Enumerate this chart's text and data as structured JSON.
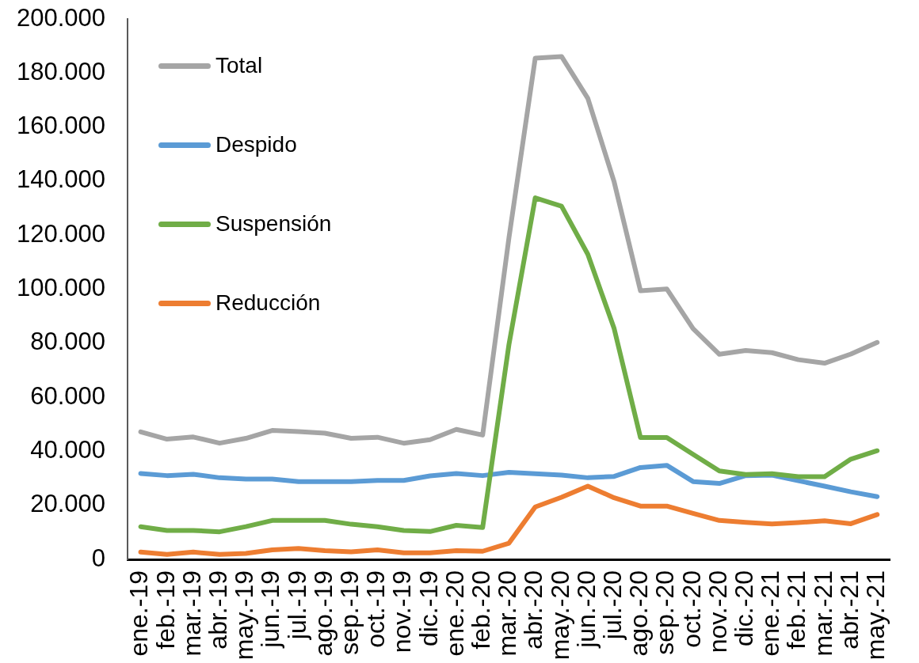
{
  "chart_data": {
    "type": "line",
    "categories": [
      "ene.-19",
      "feb.-19",
      "mar.-19",
      "abr.-19",
      "may.-19",
      "jun.-19",
      "jul.-19",
      "ago.-19",
      "sep.-19",
      "oct.-19",
      "nov.-19",
      "dic.-19",
      "ene.-20",
      "feb.-20",
      "mar.-20",
      "abr.-20",
      "may.-20",
      "jun.-20",
      "jul.-20",
      "ago.-20",
      "sep.-20",
      "oct.-20",
      "nov.-20",
      "dic.-20",
      "ene.-21",
      "feb.-21",
      "mar.-21",
      "abr.-21",
      "may.-21"
    ],
    "series": [
      {
        "name": "Total",
        "color": "#a5a5a5",
        "values": [
          47200,
          44500,
          45300,
          43000,
          44800,
          47700,
          47300,
          46700,
          44800,
          45200,
          43000,
          44300,
          48100,
          46000,
          119000,
          185500,
          186100,
          170600,
          139700,
          99400,
          100100,
          85400,
          75900,
          77300,
          76500,
          73900,
          72600,
          76000,
          80300
        ]
      },
      {
        "name": "Despido",
        "color": "#5b9bd5",
        "values": [
          31800,
          31000,
          31500,
          30200,
          29700,
          29700,
          28800,
          28800,
          28800,
          29200,
          29200,
          30900,
          31800,
          31000,
          32200,
          31700,
          31200,
          30200,
          30700,
          34000,
          34800,
          28800,
          28100,
          31000,
          31200,
          29100,
          27100,
          25000,
          23200
        ]
      },
      {
        "name": "Suspensión",
        "color": "#70ad47",
        "values": [
          12100,
          10700,
          10700,
          10200,
          12100,
          14400,
          14400,
          14400,
          13000,
          12100,
          10700,
          10300,
          12600,
          11800,
          79500,
          133800,
          130700,
          112900,
          85400,
          45100,
          45100,
          38900,
          32700,
          31400,
          31700,
          30600,
          30600,
          37100,
          40200
        ]
      },
      {
        "name": "Reducción",
        "color": "#ed7d31",
        "values": [
          2700,
          1800,
          2700,
          1800,
          2200,
          3500,
          4000,
          3200,
          2800,
          3500,
          2400,
          2400,
          3200,
          3000,
          6000,
          19400,
          23000,
          27100,
          22800,
          19700,
          19700,
          17000,
          14400,
          13700,
          13100,
          13600,
          14300,
          13200,
          16600
        ]
      }
    ],
    "ylim": [
      0,
      200000
    ],
    "yticks": [
      0,
      {
        "value": 20000,
        "label": "20.000"
      },
      {
        "value": 40000,
        "label": "40.000"
      },
      {
        "value": 60000,
        "label": "60.000"
      },
      {
        "value": 80000,
        "label": "80.000"
      },
      {
        "value": 100000,
        "label": "100.000"
      },
      {
        "value": 120000,
        "label": "120.000"
      },
      {
        "value": 140000,
        "label": "140.000"
      },
      {
        "value": 160000,
        "label": "160.000"
      },
      {
        "value": 180000,
        "label": "180.000"
      },
      {
        "value": 200000,
        "label": "200.000"
      }
    ],
    "legend": "top left"
  }
}
